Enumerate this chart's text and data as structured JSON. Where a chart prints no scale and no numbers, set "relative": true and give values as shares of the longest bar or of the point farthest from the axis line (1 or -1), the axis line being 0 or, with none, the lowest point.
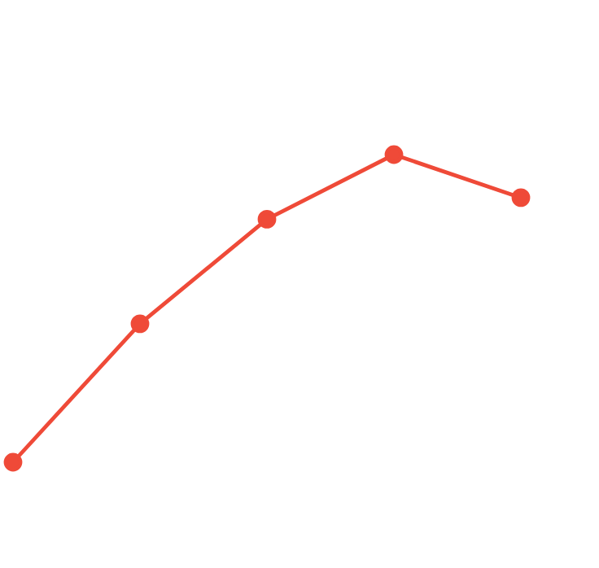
{
  "chart_data": {
    "type": "line",
    "relative": true,
    "marker": "circle",
    "categories": [
      null,
      null,
      null,
      null,
      null
    ],
    "series": [
      {
        "color": "#ef4a38",
        "values": [
          0,
          0.45,
          0.79,
          1,
          0.86
        ]
      }
    ]
  }
}
